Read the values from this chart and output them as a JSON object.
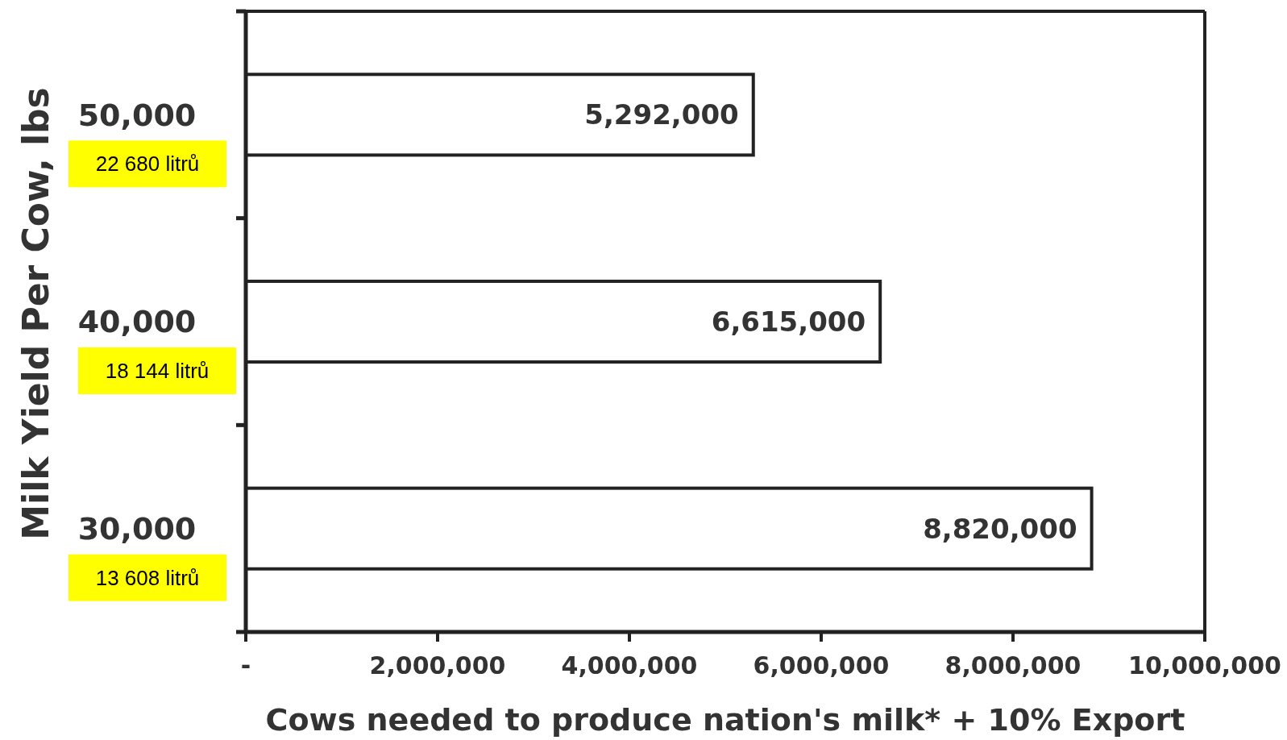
{
  "chart_data": {
    "type": "bar",
    "orientation": "horizontal",
    "categories": [
      "50,000",
      "40,000",
      "30,000"
    ],
    "values": [
      5292000,
      6615000,
      8820000
    ],
    "color": "#ffffff",
    "value_labels": [
      "5,292,000",
      "6,615,000",
      "8,820,000"
    ],
    "xlim": [
      0,
      10000000
    ],
    "xticks": [
      {
        "value": 0,
        "label": "-"
      },
      {
        "value": 2000000,
        "label": "2,000,000"
      },
      {
        "value": 4000000,
        "label": "4,000,000"
      },
      {
        "value": 6000000,
        "label": "6,000,000"
      },
      {
        "value": 8000000,
        "label": "8,000,000"
      },
      {
        "value": 10000000,
        "label": "10,000,000"
      }
    ],
    "xlabel": "Cows needed to produce nation's milk* + 10% Export",
    "ylabel": "Milk Yield Per Cow, lbs",
    "annotations": [
      "22 680 litrů",
      "18 144 litrů",
      "13 608 litrů"
    ],
    "grid": false
  }
}
